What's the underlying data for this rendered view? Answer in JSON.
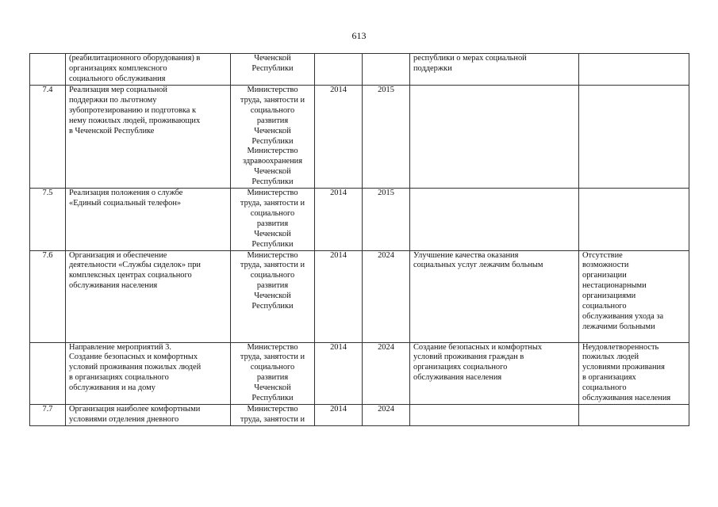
{
  "page_number": "613",
  "rows": [
    {
      "num": "",
      "name": "(реабилитационного оборудования) в\nорганизациях комплексного\nсоциального обслуживания",
      "executor": "Чеченской\nРеспублики",
      "start": "",
      "end": "",
      "result": "республики о мерах социальной\nподдержки",
      "consequence": ""
    },
    {
      "num": "7.4",
      "name": "Реализация мер социальной\nподдержки по льготному\nзубопротезированию и подготовка к\nнему пожилых людей, проживающих\nв Чеченской Республике",
      "executor": "Министерство\nтруда, занятости и\nсоциального\nразвития\nЧеченской\nРеспублики\nМинистерство\nздравоохранения\nЧеченской\nРеспублики",
      "start": "2014",
      "end": "2015",
      "result": "",
      "consequence": ""
    },
    {
      "num": "7.5",
      "name": "Реализация положения о службе\n«Единый социальный телефон»",
      "executor": "Министерство\nтруда, занятости и\nсоциального\nразвития\nЧеченской\nРеспублики",
      "start": "2014",
      "end": "2015",
      "result": "",
      "consequence": ""
    },
    {
      "num": "7.6",
      "name": "Организация и обеспечение\nдеятельности «Службы сиделок» при\nкомплексных центрах социального\nобслуживания населения",
      "executor": "Министерство\nтруда, занятости и\nсоциального\nразвития\nЧеченской\nРеспублики",
      "start": "2014",
      "end": "2024",
      "result": "Улучшение качества оказания\nсоциальных услуг лежачим больным",
      "consequence": "Отсутствие\nвозможности\nорганизации\nнестационарными\nорганизациями\nсоциального\nобслуживания ухода за\nлежачими больными"
    },
    {
      "num": "",
      "name": "Направление мероприятий 3.\nСоздание безопасных и комфортных\nусловий проживания пожилых людей\nв организациях социального\nобслуживания и на дому",
      "executor": "Министерство\nтруда, занятости и\nсоциального\nразвития\nЧеченской\nРеспублики",
      "start": "2014",
      "end": "2024",
      "result": "Создание безопасных и комфортных\nусловий проживания граждан в\nорганизациях социального\nобслуживания населения",
      "consequence": "Неудовлетворенность\nпожилых людей\nусловиями проживания\nв организациях\nсоциального\nобслуживания населения"
    },
    {
      "num": "7.7",
      "name": "Организация наиболее комфортными\nусловиями отделения дневного",
      "executor": "Министерство\nтруда, занятости и",
      "start": "2014",
      "end": "2024",
      "result": "",
      "consequence": ""
    }
  ]
}
